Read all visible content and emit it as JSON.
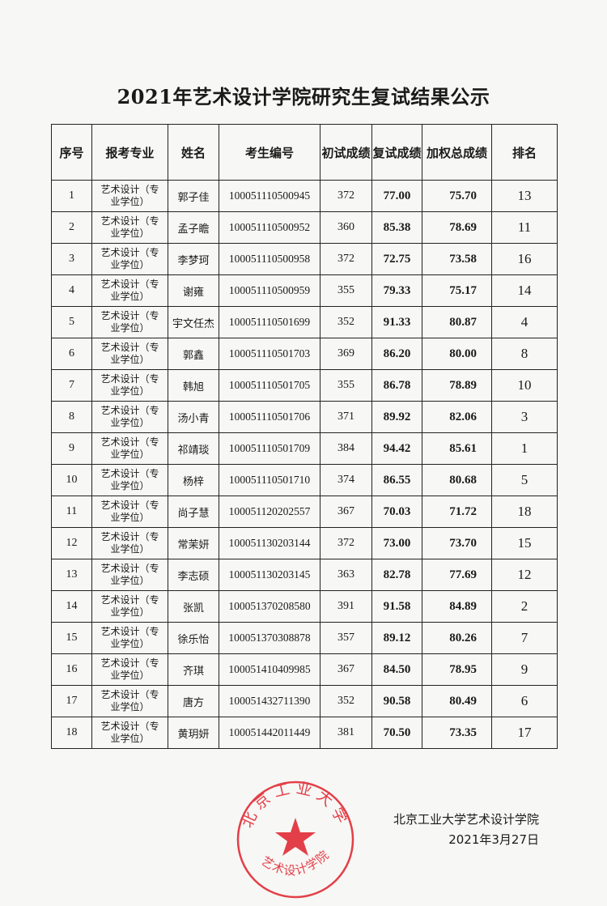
{
  "title": "2021年艺术设计学院研究生复试结果公示",
  "table": {
    "headers": [
      "序号",
      "报考专业",
      "姓名",
      "考生编号",
      "初试成绩",
      "复试成绩",
      "加权总成绩",
      "排名"
    ],
    "rows": [
      {
        "no": "1",
        "major_line1": "艺术设计（专",
        "major_line2": "业学位）",
        "name": "郭子佳",
        "id": "100051110500945",
        "prelim": "372",
        "retest": "77.00",
        "weighted": "75.70",
        "rank": "13"
      },
      {
        "no": "2",
        "major_line1": "艺术设计（专",
        "major_line2": "业学位）",
        "name": "孟子瞻",
        "id": "100051110500952",
        "prelim": "360",
        "retest": "85.38",
        "weighted": "78.69",
        "rank": "11"
      },
      {
        "no": "3",
        "major_line1": "艺术设计（专",
        "major_line2": "业学位）",
        "name": "李梦珂",
        "id": "100051110500958",
        "prelim": "372",
        "retest": "72.75",
        "weighted": "73.58",
        "rank": "16"
      },
      {
        "no": "4",
        "major_line1": "艺术设计（专",
        "major_line2": "业学位）",
        "name": "谢雍",
        "id": "100051110500959",
        "prelim": "355",
        "retest": "79.33",
        "weighted": "75.17",
        "rank": "14"
      },
      {
        "no": "5",
        "major_line1": "艺术设计（专",
        "major_line2": "业学位）",
        "name": "宇文任杰",
        "id": "100051110501699",
        "prelim": "352",
        "retest": "91.33",
        "weighted": "80.87",
        "rank": "4"
      },
      {
        "no": "6",
        "major_line1": "艺术设计（专",
        "major_line2": "业学位）",
        "name": "郭鑫",
        "id": "100051110501703",
        "prelim": "369",
        "retest": "86.20",
        "weighted": "80.00",
        "rank": "8"
      },
      {
        "no": "7",
        "major_line1": "艺术设计（专",
        "major_line2": "业学位）",
        "name": "韩旭",
        "id": "100051110501705",
        "prelim": "355",
        "retest": "86.78",
        "weighted": "78.89",
        "rank": "10"
      },
      {
        "no": "8",
        "major_line1": "艺术设计（专",
        "major_line2": "业学位）",
        "name": "汤小青",
        "id": "100051110501706",
        "prelim": "371",
        "retest": "89.92",
        "weighted": "82.06",
        "rank": "3"
      },
      {
        "no": "9",
        "major_line1": "艺术设计（专",
        "major_line2": "业学位）",
        "name": "祁靖琰",
        "id": "100051110501709",
        "prelim": "384",
        "retest": "94.42",
        "weighted": "85.61",
        "rank": "1"
      },
      {
        "no": "10",
        "major_line1": "艺术设计（专",
        "major_line2": "业学位）",
        "name": "杨梓",
        "id": "100051110501710",
        "prelim": "374",
        "retest": "86.55",
        "weighted": "80.68",
        "rank": "5"
      },
      {
        "no": "11",
        "major_line1": "艺术设计（专",
        "major_line2": "业学位）",
        "name": "尚子慧",
        "id": "100051120202557",
        "prelim": "367",
        "retest": "70.03",
        "weighted": "71.72",
        "rank": "18"
      },
      {
        "no": "12",
        "major_line1": "艺术设计（专",
        "major_line2": "业学位）",
        "name": "常茉妍",
        "id": "100051130203144",
        "prelim": "372",
        "retest": "73.00",
        "weighted": "73.70",
        "rank": "15"
      },
      {
        "no": "13",
        "major_line1": "艺术设计（专",
        "major_line2": "业学位）",
        "name": "李志硕",
        "id": "100051130203145",
        "prelim": "363",
        "retest": "82.78",
        "weighted": "77.69",
        "rank": "12"
      },
      {
        "no": "14",
        "major_line1": "艺术设计（专",
        "major_line2": "业学位）",
        "name": "张凯",
        "id": "100051370208580",
        "prelim": "391",
        "retest": "91.58",
        "weighted": "84.89",
        "rank": "2"
      },
      {
        "no": "15",
        "major_line1": "艺术设计（专",
        "major_line2": "业学位）",
        "name": "徐乐怡",
        "id": "100051370308878",
        "prelim": "357",
        "retest": "89.12",
        "weighted": "80.26",
        "rank": "7"
      },
      {
        "no": "16",
        "major_line1": "艺术设计（专",
        "major_line2": "业学位）",
        "name": "齐琪",
        "id": "100051410409985",
        "prelim": "367",
        "retest": "84.50",
        "weighted": "78.95",
        "rank": "9"
      },
      {
        "no": "17",
        "major_line1": "艺术设计（专",
        "major_line2": "业学位）",
        "name": "唐方",
        "id": "100051432711390",
        "prelim": "352",
        "retest": "90.58",
        "weighted": "80.49",
        "rank": "6"
      },
      {
        "no": "18",
        "major_line1": "艺术设计（专",
        "major_line2": "业学位）",
        "name": "黄玥妍",
        "id": "100051442011449",
        "prelim": "381",
        "retest": "70.50",
        "weighted": "73.35",
        "rank": "17"
      }
    ]
  },
  "signature": {
    "org": "北京工业大学艺术设计学院",
    "date": "2021年3月27日"
  },
  "stamp": {
    "outer_text": "北京工业大学",
    "inner_text": "艺术设计学院",
    "color": "#e0202a"
  }
}
